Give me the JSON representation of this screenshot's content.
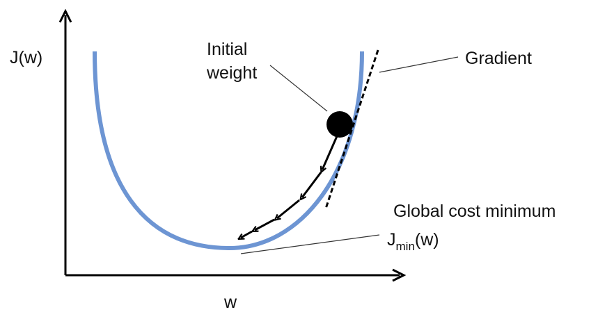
{
  "axes": {
    "y_label": "J(w)",
    "x_label": "w"
  },
  "annotations": {
    "initial_weight_line1": "Initial",
    "initial_weight_line2": "weight",
    "gradient": "Gradient",
    "global_minimum": "Global cost minimum",
    "jmin_prefix": "J",
    "jmin_subscript": "min",
    "jmin_suffix": "(w)"
  },
  "colors": {
    "cost_curve": "#6d95d3",
    "axes": "#000000",
    "ball": "#000000",
    "tangent": "#000000",
    "leader_lines": "#333333",
    "step_arrows": "#000000"
  }
}
